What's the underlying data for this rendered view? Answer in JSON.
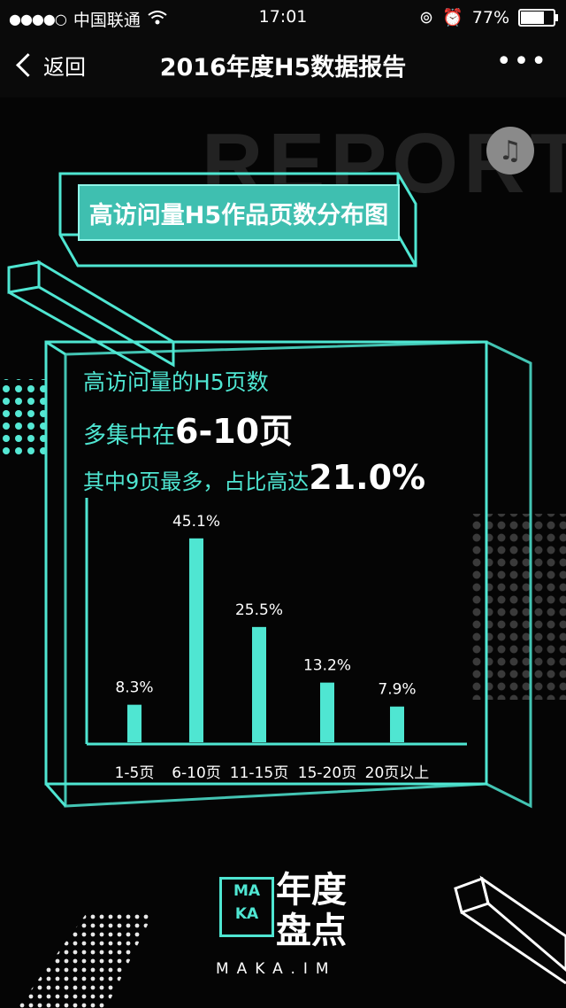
{
  "status": {
    "carrier": "中国联通",
    "time": "17:01",
    "battery": "77%",
    "battery_level": 0.77
  },
  "nav": {
    "back_label": "返回",
    "title": "2016年度H5数据报告",
    "more": "•••"
  },
  "hero": {
    "bg_text": "REPORT",
    "heading": "高访问量H5作品页数分布图"
  },
  "stats": {
    "line1": "高访问量的H5页数",
    "line2_prefix": "多集中在",
    "line2_value": "6-10页",
    "line3_prefix": "其中9页最多，占比高达",
    "line3_value": "21.0%"
  },
  "chart_data": {
    "type": "bar",
    "categories": [
      "1-5页",
      "6-10页",
      "11-15页",
      "15-20页",
      "20页以上"
    ],
    "values": [
      8.3,
      45.1,
      25.5,
      13.2,
      7.9
    ],
    "value_labels": [
      "8.3%",
      "45.1%",
      "25.5%",
      "13.2%",
      "7.9%"
    ],
    "ylim": [
      0,
      50
    ],
    "bar_color": "#4fe6d2"
  },
  "brand": {
    "line1": "MA",
    "line2": "KA",
    "title1": "年度",
    "title2": "盘点",
    "site": "MAKA.IM"
  },
  "colors": {
    "accent": "#4fe6d2",
    "background": "#050505"
  }
}
